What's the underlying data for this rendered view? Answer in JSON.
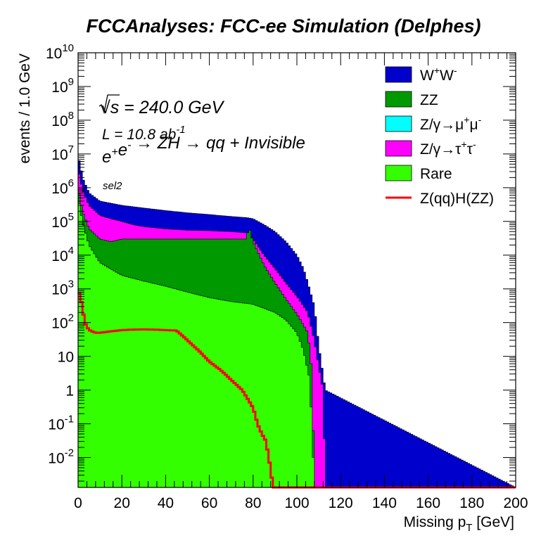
{
  "chart_data": {
    "type": "area",
    "stacked": true,
    "title": "FCCAnalyses: FCC-ee Simulation (Delphes)",
    "xlabel": "Missing p_T [GeV]",
    "ylabel": "events / 1.0 GeV",
    "xlim": [
      0,
      200
    ],
    "ylim": [
      0.0013,
      10000000000
    ],
    "yscale": "log",
    "x_ticks": [
      "0",
      "20",
      "40",
      "60",
      "80",
      "100",
      "120",
      "140",
      "160",
      "180",
      "200"
    ],
    "y_ticks": [
      "10^-2",
      "10^-1",
      "1",
      "10",
      "10^2",
      "10^3",
      "10^4",
      "10^5",
      "10^6",
      "10^7",
      "10^8",
      "10^9",
      "10^10"
    ],
    "grid": false,
    "legend_position": "top-right",
    "annotations": {
      "sqrt_s": "√s = 240.0 GeV",
      "lumi": "L = 10.8 ab^-1",
      "process": "e+e- → ZH → qq + Invisible",
      "selection": "sel2"
    },
    "series": [
      {
        "name": "Rare",
        "color": "#33ff00",
        "x": [
          0,
          2,
          5,
          10,
          20,
          30,
          40,
          50,
          60,
          70,
          80,
          90,
          95,
          100,
          103,
          106,
          107,
          107.5,
          108,
          120,
          200
        ],
        "values": [
          500000,
          100000,
          20000,
          6000,
          2500,
          1700,
          1200,
          800,
          550,
          420,
          350,
          200,
          120,
          50,
          15,
          2,
          0.05,
          0.01,
          0.0013,
          0.0013,
          0.0013
        ]
      },
      {
        "name": "Z/γ→μ+μ-",
        "color": "#00ffff",
        "x": [
          0,
          2,
          5,
          8,
          10,
          12,
          15,
          16,
          17,
          18,
          20,
          22,
          24,
          25,
          26,
          27,
          200
        ],
        "values": [
          1000,
          400,
          150,
          300,
          600,
          900,
          1200,
          1000,
          700,
          500,
          200,
          50,
          10,
          2,
          0.5,
          0.0013,
          0.0013
        ]
      },
      {
        "name": "ZZ",
        "color": "#009900",
        "x": [
          0,
          2,
          5,
          10,
          15,
          20,
          30,
          40,
          50,
          60,
          70,
          77,
          78,
          80,
          85,
          90,
          95,
          100,
          105,
          107,
          108,
          200
        ],
        "values": [
          1000000,
          200000,
          60000,
          30000,
          25000,
          30000,
          30000,
          30000,
          30000,
          30000,
          30000,
          30000,
          70000,
          25000,
          5000,
          1500,
          500,
          180,
          50,
          3,
          0.0013,
          0.0013
        ]
      },
      {
        "name": "Z/γ→τ+τ-",
        "color": "#ff00ff",
        "x": [
          0,
          2,
          5,
          10,
          15,
          20,
          25,
          30,
          40,
          50,
          60,
          70,
          78,
          80,
          85,
          90,
          95,
          100,
          105,
          108,
          110,
          112,
          113,
          200
        ],
        "values": [
          3500000,
          900000,
          300000,
          150000,
          120000,
          100000,
          80000,
          70000,
          60000,
          55000,
          53000,
          50000,
          45000,
          30000,
          10000,
          4000,
          1500,
          600,
          200,
          30,
          5,
          1,
          0.0013,
          0.0013
        ]
      },
      {
        "name": "W+W-",
        "color": "#0000cc",
        "x": [
          0,
          1,
          2,
          5,
          10,
          20,
          30,
          40,
          50,
          60,
          70,
          77,
          80,
          85,
          90,
          95,
          100,
          103,
          105,
          108,
          110,
          113,
          200
        ],
        "values": [
          8000000,
          5000000,
          2000000,
          700000,
          400000,
          300000,
          250000,
          210000,
          180000,
          160000,
          140000,
          130000,
          120000,
          80000,
          50000,
          25000,
          10000,
          4000,
          1500,
          300,
          20,
          1,
          0.0013
        ]
      },
      {
        "name": "Z(qq)H(ZZ)",
        "color": "#ff0000",
        "x": [
          0,
          2,
          3,
          5,
          8,
          10,
          15,
          20,
          25,
          30,
          35,
          40,
          45,
          50,
          55,
          60,
          65,
          70,
          75,
          80,
          82,
          84,
          86,
          87,
          88,
          89,
          90,
          200
        ],
        "values": [
          1000,
          300,
          100,
          60,
          50,
          50,
          55,
          60,
          62,
          63,
          62,
          60,
          58,
          30,
          15,
          7,
          4,
          2,
          1,
          0.3,
          0.1,
          0.05,
          0.03,
          0.01,
          0.005,
          0.0013,
          0.0013,
          0.0013
        ]
      }
    ]
  }
}
